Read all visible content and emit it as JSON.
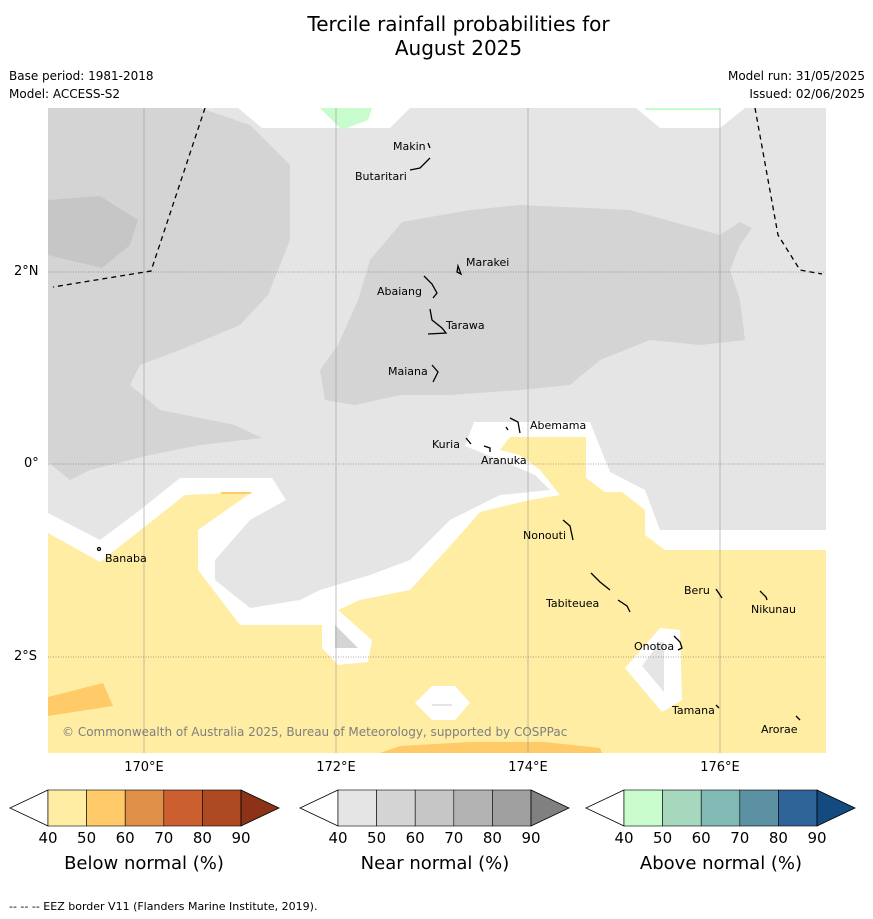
{
  "title_line1": "Tercile rainfall probabilities for",
  "title_line2": "August 2025",
  "meta": {
    "base_period": "Base period: 1981-2018",
    "model": "Model: ACCESS-S2",
    "model_run": "Model run: 31/05/2025",
    "issued": "Issued: 02/06/2025"
  },
  "map": {
    "lat_labels": [
      "2°N",
      "0°",
      "2°S"
    ],
    "lon_labels": [
      "170°E",
      "172°E",
      "174°E",
      "176°E"
    ],
    "places": [
      "Makin",
      "Butaritari",
      "Marakei",
      "Abaiang",
      "Tarawa",
      "Maiana",
      "Abemama",
      "Kuria",
      "Aranuka",
      "Nonouti",
      "Banaba",
      "Beru",
      "Nikunau",
      "Tabiteuea",
      "Onotoa",
      "Tamana",
      "Arorae"
    ],
    "copyright": "© Commonwealth of Australia 2025, Bureau of Meteorology, supported by COSPPac",
    "colors": {
      "near_40": "#e5e5e5",
      "near_50": "#d4d4d4",
      "near_60": "#c6c6c6",
      "below_40": "#feeda2",
      "below_50": "#fecb68",
      "above_40": "#c8fccc",
      "background": "#ffffff"
    }
  },
  "colorbars": [
    {
      "title": "Below normal (%)",
      "ticks": [
        "40",
        "50",
        "60",
        "70",
        "80",
        "90"
      ],
      "colors": [
        "#ffffff",
        "#feeda2",
        "#fecb68",
        "#e08f49",
        "#cc5f2f",
        "#ad4a23",
        "#8c3218"
      ]
    },
    {
      "title": "Near normal (%)",
      "ticks": [
        "40",
        "50",
        "60",
        "70",
        "80",
        "90"
      ],
      "colors": [
        "#ffffff",
        "#e5e5e5",
        "#d4d4d4",
        "#c6c6c6",
        "#b3b3b3",
        "#a0a0a0",
        "#808080"
      ]
    },
    {
      "title": "Above normal (%)",
      "ticks": [
        "40",
        "50",
        "60",
        "70",
        "80",
        "90"
      ],
      "colors": [
        "#ffffff",
        "#c8fccc",
        "#a6d8bd",
        "#81b9b4",
        "#5b91a2",
        "#2e6497",
        "#134a80"
      ]
    }
  ],
  "footnote": "--  --  -- EEZ border V11 (Flanders Marine Institute, 2019)."
}
